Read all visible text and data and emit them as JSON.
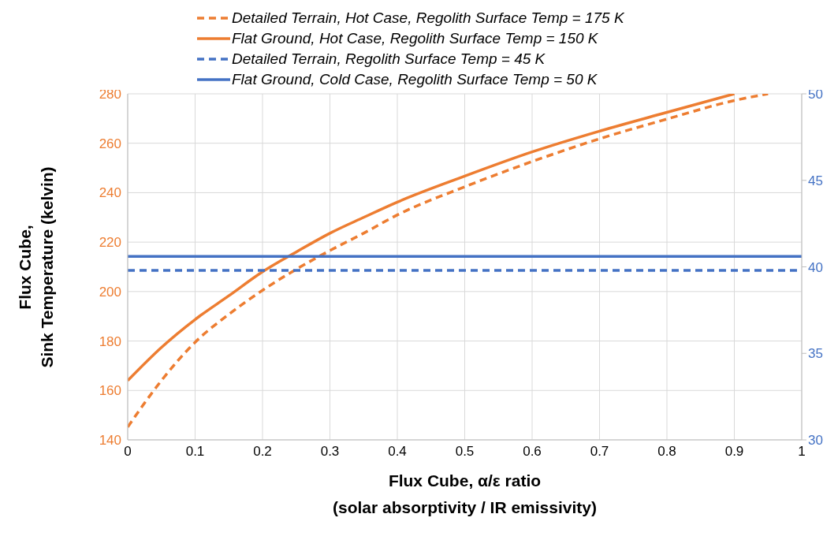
{
  "chart_data": {
    "type": "line",
    "xlabel": "Flux Cube, α/ε ratio\n(solar absorptivity / IR emissivity)",
    "ylabel": "Flux Cube,\nSink Temperature (kelvin)",
    "xlim": [
      0,
      1
    ],
    "xticks": [
      0,
      0.1,
      0.2,
      0.3,
      0.4,
      0.5,
      0.6,
      0.7,
      0.8,
      0.9,
      1
    ],
    "ylim": [
      140,
      280
    ],
    "yticks": [
      140,
      160,
      180,
      200,
      220,
      240,
      260,
      280
    ],
    "y2lim": [
      30,
      50
    ],
    "y2ticks": [
      30,
      35,
      40,
      45,
      50
    ],
    "grid": true,
    "legend": "top",
    "marker": "none",
    "series": [
      {
        "name": "Detailed Terrain, Hot Case, Regolith Surface Temp = 175 K",
        "color": "#ed7d31",
        "line_style": "dashed",
        "x": [
          0,
          0.05,
          0.1,
          0.15,
          0.2,
          0.25,
          0.3,
          0.35,
          0.4,
          0.5,
          0.6,
          0.7,
          0.8,
          0.9,
          0.95
        ],
        "values": [
          145.2,
          164,
          179.5,
          190.8,
          200.5,
          209,
          216.6,
          223.6,
          231,
          242.4,
          252.6,
          261.8,
          269.8,
          277.3,
          280
        ]
      },
      {
        "name": "Flat Ground, Hot Case, Regolith Surface Temp = 150 K",
        "color": "#ed7d31",
        "line_style": "solid",
        "x": [
          0,
          0.05,
          0.1,
          0.15,
          0.2,
          0.25,
          0.3,
          0.35,
          0.4,
          0.5,
          0.6,
          0.7,
          0.8,
          0.9
        ],
        "values": [
          164,
          177.4,
          188.7,
          198.3,
          208,
          216,
          223.6,
          230,
          236.2,
          246.7,
          256.5,
          264.9,
          272.5,
          280
        ]
      },
      {
        "name": "Detailed Terrain, Regolith Surface Temp = 45 K",
        "color": "#4472c4",
        "line_style": "dashed",
        "axis": "y2",
        "x": [
          0,
          1
        ],
        "values": [
          39.8,
          39.8
        ]
      },
      {
        "name": "Flat Ground, Cold Case, Regolith Surface Temp = 50 K",
        "color": "#4472c4",
        "line_style": "solid",
        "axis": "y2",
        "x": [
          0,
          1
        ],
        "values": [
          40.6,
          40.6
        ]
      }
    ]
  }
}
